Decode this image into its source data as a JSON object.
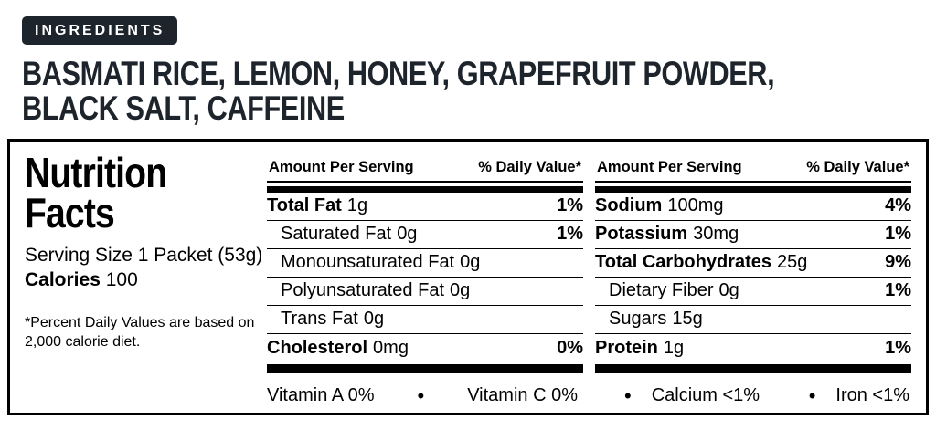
{
  "ingredients": {
    "badge": "INGREDIENTS",
    "lines": [
      "BASMATI RICE, LEMON, HONEY, GRAPEFRUIT POWDER,",
      "BLACK SALT, CAFFEINE"
    ]
  },
  "panel": {
    "title": "Nutrition Facts",
    "serving_size": "Serving Size 1 Packet (53g)",
    "calories_label": "Calories",
    "calories_value": "100",
    "footnote_lines": [
      "*Percent Daily Values are based on",
      "2,000 calorie diet."
    ]
  },
  "table": {
    "header": {
      "amount": "Amount Per Serving",
      "daily": "% Daily Value*"
    },
    "col1": {
      "rows": [
        {
          "name": "Total Fat",
          "amount": "1g",
          "percent": "1%"
        },
        {
          "name": "Saturated Fat",
          "amount": "0g",
          "percent": "1%"
        },
        {
          "name": "Monounsaturated Fat",
          "amount": "0g",
          "percent": ""
        },
        {
          "name": "Polyunsaturated Fat",
          "amount": "0g",
          "percent": ""
        },
        {
          "name": "Trans Fat",
          "amount": "0g",
          "percent": ""
        },
        {
          "name": "Cholesterol",
          "amount": "0mg",
          "percent": "0%"
        }
      ],
      "footer": {
        "item1": "Vitamin A 0%",
        "bullet": "•",
        "item2": "Vitamin C  0%"
      }
    },
    "col2": {
      "rows": [
        {
          "name": "Sodium",
          "amount": "100mg",
          "percent": "4%"
        },
        {
          "name": "Potassium",
          "amount": "30mg",
          "percent": "1%"
        },
        {
          "name": "Total Carbohydrates",
          "amount": "25g",
          "percent": "9%"
        },
        {
          "name": "Dietary Fiber",
          "amount": "0g",
          "percent": "1%"
        },
        {
          "name": "Sugars",
          "amount": "15g",
          "percent": ""
        },
        {
          "name": "Protein",
          "amount": "1g",
          "percent": "1%"
        }
      ],
      "footer": {
        "bullet1": "•",
        "item1": "Calcium <1%",
        "bullet2": "•",
        "item2": "Iron <1%"
      }
    }
  },
  "colors": {
    "badge_bg": "#1d242c",
    "heading_text": "#1e242c",
    "rule_black": "#000000"
  }
}
